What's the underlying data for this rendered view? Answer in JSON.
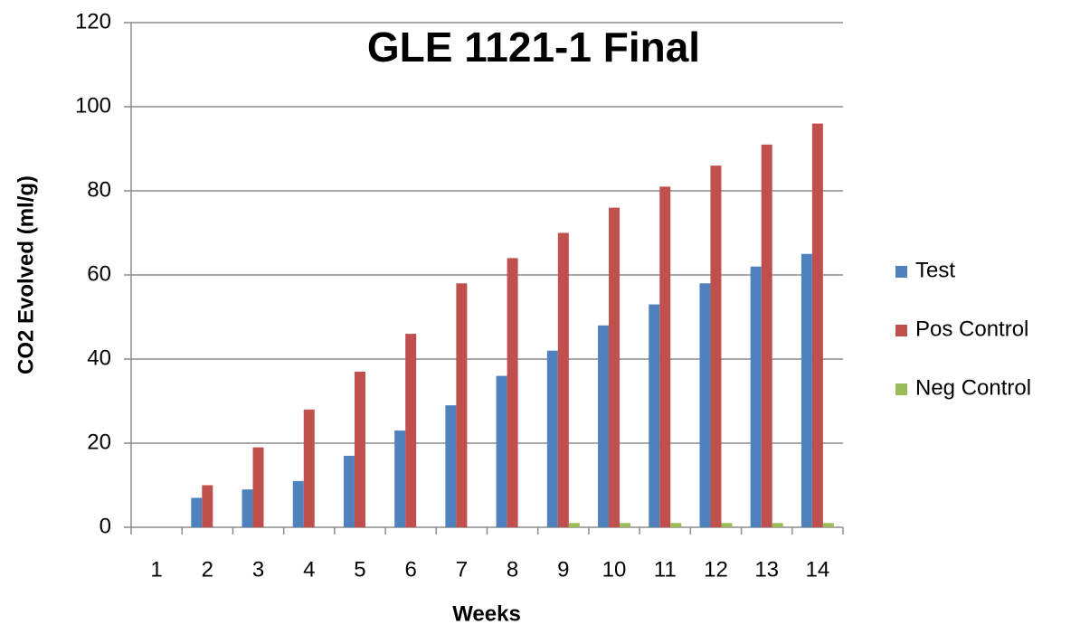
{
  "chart_data": {
    "type": "bar",
    "title": "GLE 1121-1 Final",
    "x_label": "Weeks",
    "y_label": "CO2 Evolved (ml/g)",
    "categories": [
      "1",
      "2",
      "3",
      "4",
      "5",
      "6",
      "7",
      "8",
      "9",
      "10",
      "11",
      "12",
      "13",
      "14"
    ],
    "series": [
      {
        "name": "Test",
        "color": "#4f81bd",
        "values": [
          0,
          7,
          9,
          11,
          17,
          23,
          29,
          36,
          42,
          48,
          53,
          58,
          62,
          65
        ]
      },
      {
        "name": "Pos Control",
        "color": "#c0504d",
        "values": [
          0,
          10,
          19,
          28,
          37,
          46,
          58,
          64,
          70,
          76,
          81,
          86,
          91,
          96
        ]
      },
      {
        "name": "Neg Control",
        "color": "#9bbb59",
        "values": [
          0,
          0,
          0,
          0,
          0,
          0,
          0,
          0,
          1,
          1,
          1,
          1,
          1,
          1
        ]
      }
    ],
    "ylim": [
      0,
      120
    ],
    "yticks": [
      0,
      20,
      40,
      60,
      80,
      100,
      120
    ],
    "grid": true,
    "legend": "right"
  }
}
